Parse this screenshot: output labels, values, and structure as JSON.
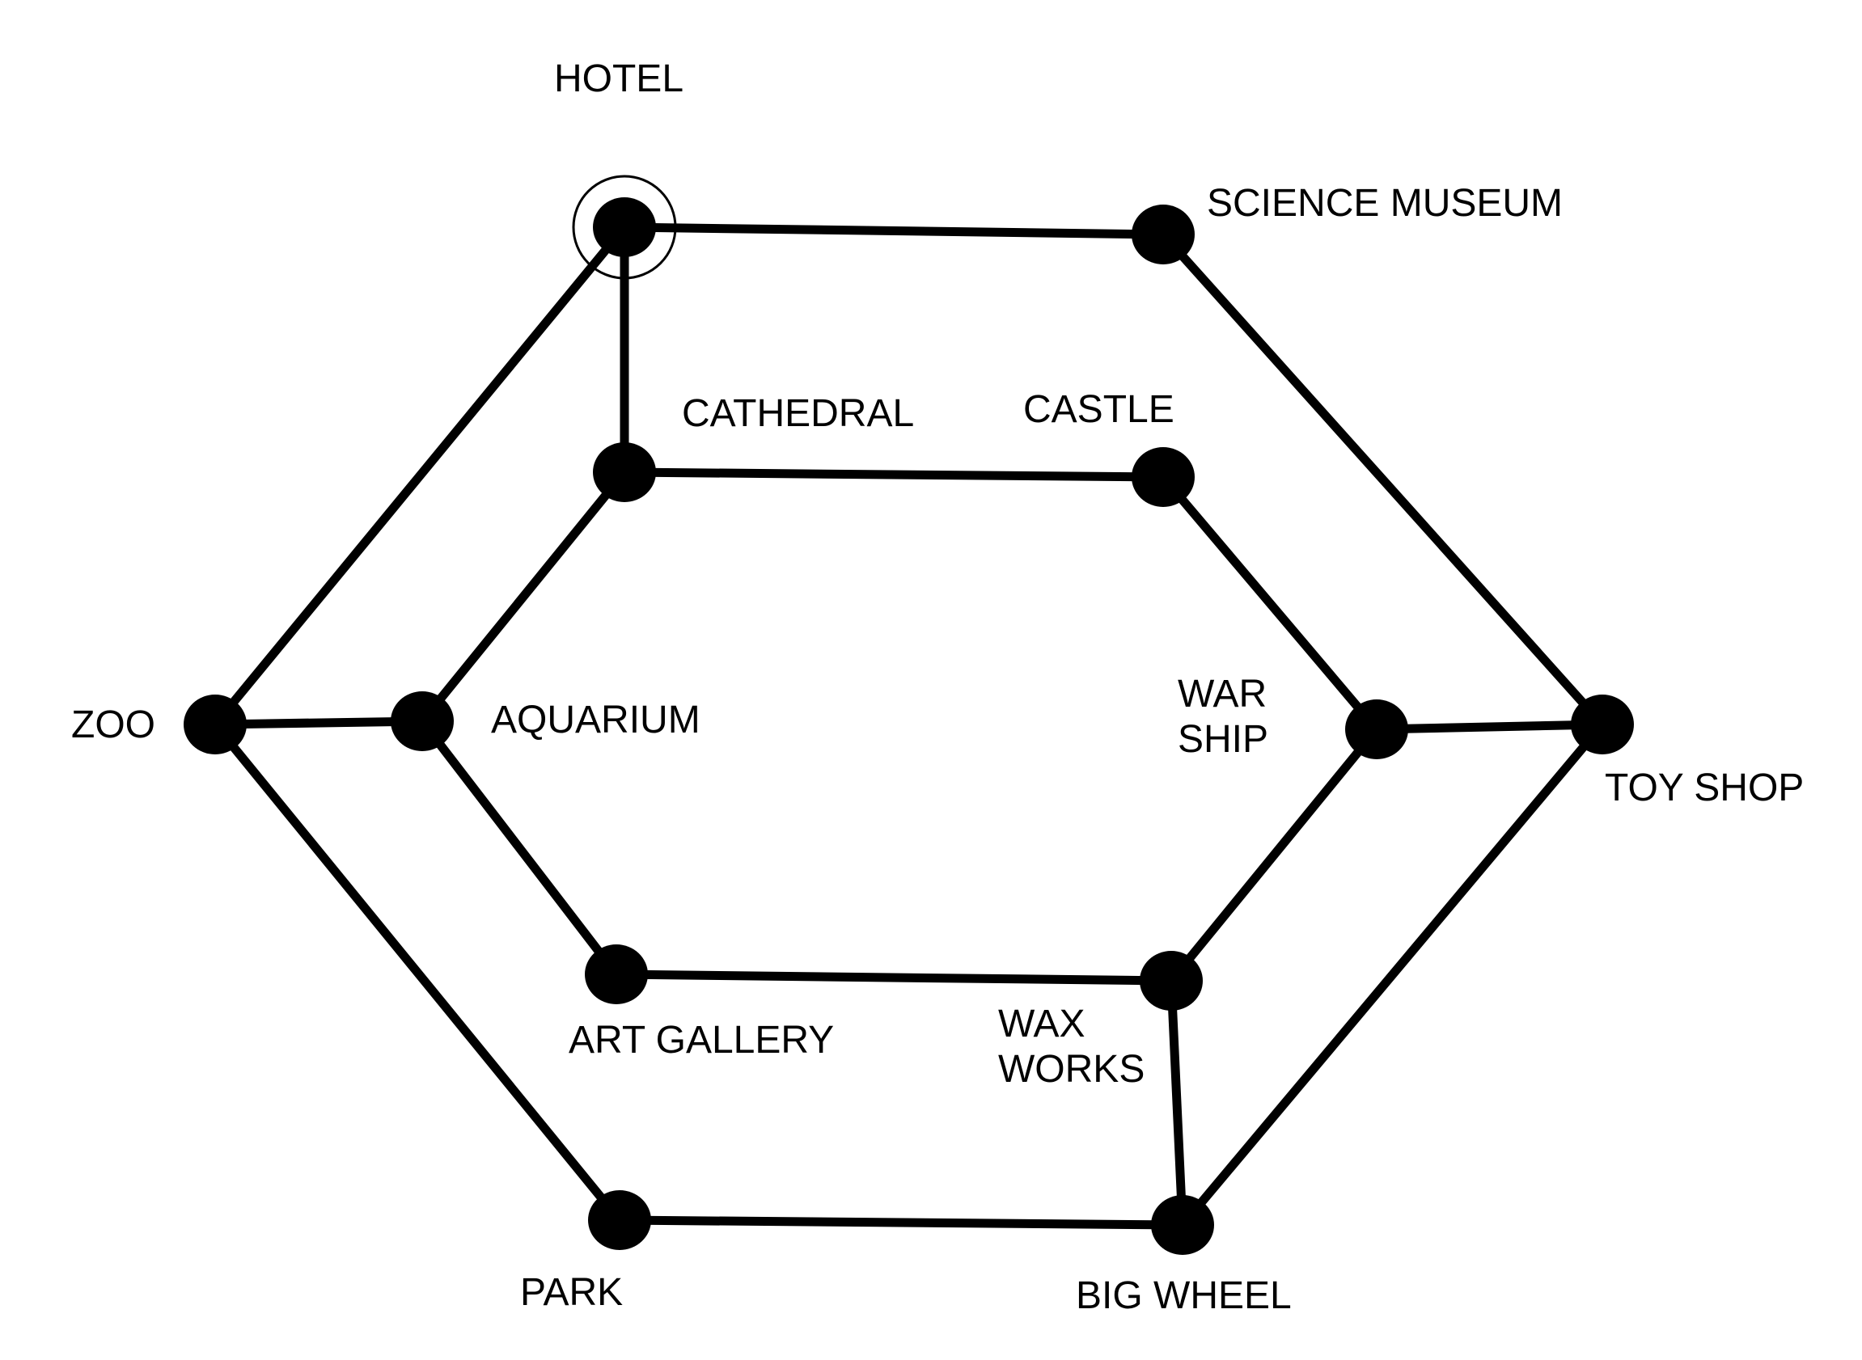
{
  "colors": {
    "line": "#000000",
    "node": "#000000",
    "background": "#ffffff"
  },
  "nodes": [
    {
      "id": "hotel",
      "label": "HOTEL",
      "start": true
    },
    {
      "id": "science_museum",
      "label": "SCIENCE MUSEUM"
    },
    {
      "id": "cathedral",
      "label": "CATHEDRAL"
    },
    {
      "id": "castle",
      "label": "CASTLE"
    },
    {
      "id": "zoo",
      "label": "ZOO"
    },
    {
      "id": "aquarium",
      "label": "AQUARIUM"
    },
    {
      "id": "war_ship",
      "label_lines": [
        "WAR",
        "SHIP"
      ]
    },
    {
      "id": "toy_shop",
      "label": "TOY SHOP"
    },
    {
      "id": "art_gallery",
      "label": "ART GALLERY"
    },
    {
      "id": "wax_works",
      "label_lines": [
        "WAX",
        "WORKS"
      ]
    },
    {
      "id": "park",
      "label": "PARK"
    },
    {
      "id": "big_wheel",
      "label": "BIG WHEEL"
    }
  ],
  "edges": [
    [
      "hotel",
      "science_museum"
    ],
    [
      "hotel",
      "cathedral"
    ],
    [
      "hotel",
      "zoo"
    ],
    [
      "science_museum",
      "toy_shop"
    ],
    [
      "cathedral",
      "castle"
    ],
    [
      "cathedral",
      "aquarium"
    ],
    [
      "castle",
      "war_ship"
    ],
    [
      "zoo",
      "aquarium"
    ],
    [
      "zoo",
      "park"
    ],
    [
      "aquarium",
      "art_gallery"
    ],
    [
      "war_ship",
      "toy_shop"
    ],
    [
      "war_ship",
      "wax_works"
    ],
    [
      "toy_shop",
      "big_wheel"
    ],
    [
      "art_gallery",
      "wax_works"
    ],
    [
      "wax_works",
      "big_wheel"
    ],
    [
      "park",
      "big_wheel"
    ]
  ]
}
